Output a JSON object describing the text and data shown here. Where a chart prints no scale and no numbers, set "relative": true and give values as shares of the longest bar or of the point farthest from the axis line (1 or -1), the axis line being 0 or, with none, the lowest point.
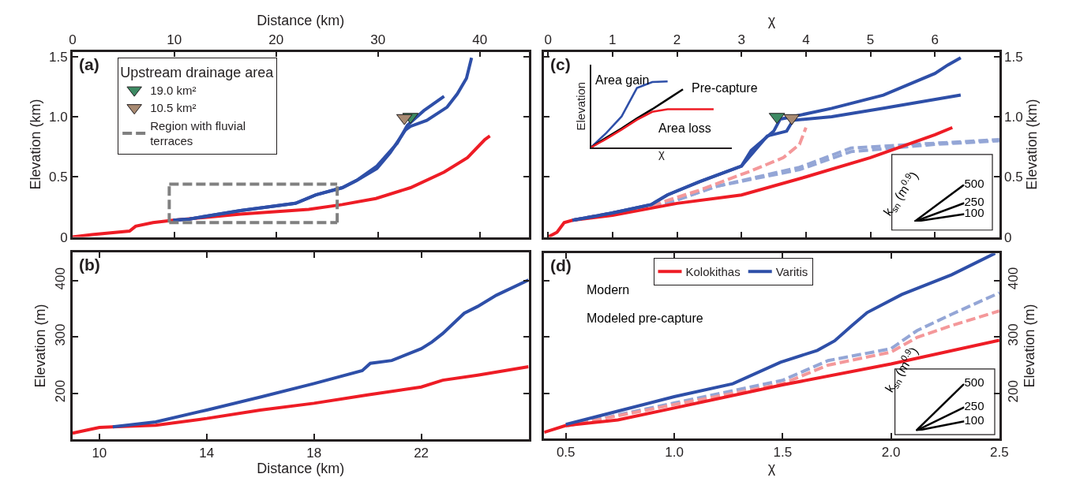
{
  "chart_data": [
    {
      "type": "line",
      "title": "(a)",
      "xlabel": "Distance (km)",
      "ylabel": "Elevation (km)",
      "xlim": [
        0,
        44.8
      ],
      "ylim": [
        0,
        1.54
      ],
      "xticks": [
        0,
        10,
        20,
        30,
        40
      ],
      "yticks": [
        0,
        0.5,
        {
          "value": 1,
          "label": "1.0"
        },
        1.5
      ],
      "legend": "top left",
      "legend_title": "Upstream drainage area",
      "series": [
        {
          "color": "#ee1c25",
          "x": [
            0,
            1.9,
            5.6,
            6.2,
            7.9,
            9.9,
            16.5,
            23.2,
            26.5,
            29.8,
            33.2,
            36.5,
            38.8,
            40.5,
            41
          ],
          "values": [
            0,
            0.02,
            0.05,
            0.09,
            0.12,
            0.14,
            0.19,
            0.23,
            0.27,
            0.32,
            0.41,
            0.54,
            0.66,
            0.81,
            0.84
          ]
        },
        {
          "color": "#2e4fa8",
          "x": [
            9.9,
            11.5,
            16.5,
            21.9,
            23.9,
            26.5,
            27.9,
            29.9,
            31.2,
            32.7,
            33.2,
            34.8,
            36.8,
            37.8,
            38.7,
            39.2
          ],
          "values": [
            0.14,
            0.15,
            0.22,
            0.28,
            0.35,
            0.41,
            0.47,
            0.57,
            0.7,
            0.89,
            0.92,
            0.97,
            1.08,
            1.19,
            1.32,
            1.49
          ]
        },
        {
          "color": "#2e4fa8",
          "x": [
            9.9,
            11.5,
            16.5,
            21.9,
            23.9,
            26.5,
            27.9,
            29.9,
            31.9,
            32.9,
            34.5,
            36.5
          ],
          "values": [
            0.14,
            0.15,
            0.22,
            0.28,
            0.35,
            0.41,
            0.47,
            0.59,
            0.78,
            0.93,
            1.05,
            1.17
          ]
        },
        {
          "type": "scatter",
          "marker": "triangle",
          "name": "19.0 km²",
          "color": "#3d8a63",
          "x": [
            33.2
          ],
          "values": [
            1.0
          ]
        },
        {
          "type": "scatter",
          "marker": "triangle",
          "name": "10.5 km²",
          "color": "#a88a72",
          "x": [
            32.6
          ],
          "values": [
            0.99
          ]
        },
        {
          "name": "Region with fluvial terraces",
          "color": "#808080",
          "line_style": "dashed",
          "x": [
            9.5,
            26
          ],
          "values": [
            0.12,
            0.12
          ]
        },
        {
          "color": "#808080",
          "line_style": "dashed",
          "x": [
            9.5,
            26
          ],
          "values": [
            0.44,
            0.44
          ]
        },
        {
          "color": "#808080",
          "line_style": "dashed",
          "x": [
            9.5,
            9.5
          ],
          "values": [
            0.12,
            0.44
          ]
        },
        {
          "color": "#808080",
          "line_style": "dashed",
          "x": [
            26,
            26
          ],
          "values": [
            0.12,
            0.44
          ]
        }
      ]
    },
    {
      "type": "line",
      "title": "(b)",
      "xlabel": "Distance (km)",
      "ylabel": "Elevation (m)",
      "xlim": [
        9,
        26
      ],
      "ylim": [
        118,
        450
      ],
      "xticks": [
        10,
        14,
        18,
        22
      ],
      "yticks": [
        200,
        300,
        400
      ],
      "series": [
        {
          "color": "#ee1c25",
          "x": [
            9,
            10,
            10.5,
            12.1,
            14,
            16,
            18,
            20,
            22,
            22.8,
            24.1,
            26
          ],
          "values": [
            129,
            139,
            140,
            143,
            155,
            170,
            182,
            197,
            211,
            223,
            232,
            247
          ]
        },
        {
          "color": "#2e4fa8",
          "x": [
            10.5,
            12.1,
            14,
            16,
            18,
            19.8,
            20.1,
            20.9,
            22,
            22.4,
            22.8,
            23.6,
            24.1,
            24.8,
            26
          ],
          "values": [
            140,
            149,
            170,
            193,
            217,
            240,
            253,
            258,
            279,
            291,
            306,
            342,
            354,
            374,
            401
          ]
        }
      ]
    },
    {
      "type": "line",
      "title": "(c)",
      "xlabel": "χ",
      "ylabel": "Elevation (km)",
      "xlim": [
        -0.06,
        7.0
      ],
      "ylim": [
        0,
        1.54
      ],
      "xticks": [
        0,
        1,
        2,
        3,
        4,
        5,
        6
      ],
      "yticks": [
        0,
        0.5,
        {
          "value": 1,
          "label": "1.0"
        },
        1.5
      ],
      "series": [
        {
          "color": "#94a6d6",
          "line_style": "dashed",
          "x": [
            0.38,
            1.85,
            2.6,
            3.9,
            4.7,
            6,
            7
          ],
          "values": [
            0.14,
            0.28,
            0.42,
            0.58,
            0.74,
            0.78,
            0.81
          ]
        },
        {
          "color": "#94a6d6",
          "line_style": "dashed",
          "x": [
            0.38,
            1.85,
            2.6,
            3.9,
            4.7,
            6,
            7
          ],
          "values": [
            0.14,
            0.28,
            0.42,
            0.56,
            0.71,
            0.77,
            0.8
          ]
        },
        {
          "color": "#f4989a",
          "line_style": "dashed",
          "x": [
            0.38,
            1.6,
            2.35,
            3.15,
            3.65,
            3.9,
            4.0
          ],
          "values": [
            0.14,
            0.26,
            0.39,
            0.55,
            0.66,
            0.77,
            0.91
          ]
        },
        {
          "color": "#ee1c25",
          "x": [
            0,
            0.14,
            0.25,
            0.38,
            1,
            2,
            3,
            4,
            5,
            6,
            6.27
          ],
          "values": [
            0,
            0.04,
            0.12,
            0.14,
            0.18,
            0.28,
            0.35,
            0.5,
            0.66,
            0.85,
            0.91
          ]
        },
        {
          "color": "#2e4fa8",
          "x": [
            0.38,
            1,
            1.6,
            1.85,
            2.35,
            3,
            3.15,
            3.5,
            3.6,
            3.7,
            4.4,
            5.2,
            6,
            6.2,
            6.4
          ],
          "values": [
            0.14,
            0.2,
            0.27,
            0.35,
            0.46,
            0.59,
            0.72,
            0.88,
            0.98,
            0.99,
            1.07,
            1.18,
            1.36,
            1.43,
            1.49
          ]
        },
        {
          "color": "#2e4fa8",
          "x": [
            0.38,
            1,
            1.6,
            1.85,
            2.35,
            3,
            3.4,
            3.7,
            3.8,
            4.4,
            5.2,
            6.4
          ],
          "values": [
            0.14,
            0.2,
            0.27,
            0.35,
            0.46,
            0.59,
            0.84,
            0.88,
            0.97,
            1.0,
            1.07,
            1.18
          ]
        },
        {
          "type": "scatter",
          "marker": "triangle",
          "color": "#3d8a63",
          "x": [
            3.55
          ],
          "values": [
            1.0
          ]
        },
        {
          "type": "scatter",
          "marker": "triangle",
          "color": "#a88a72",
          "x": [
            3.78
          ],
          "values": [
            0.99
          ]
        }
      ]
    },
    {
      "type": "line",
      "relative": true,
      "xlabel": "χ",
      "ylabel": "Elevation",
      "annotations": [
        "Area gain",
        "Pre-capture",
        "Area loss"
      ],
      "categories": [
        null,
        null,
        null,
        null,
        null,
        null,
        null,
        null,
        null
      ],
      "series": [
        {
          "color": "#2e4fa8",
          "values": [
            0,
            0.22,
            0.47,
            0.9,
            0.99,
            1.0,
            null,
            null,
            null
          ]
        },
        {
          "color": "#000000",
          "values": [
            0,
            0.15,
            0.29,
            0.44,
            0.58,
            0.73,
            0.88,
            null,
            null
          ]
        },
        {
          "color": "#ee1c25",
          "values": [
            0,
            0.13,
            0.27,
            0.42,
            0.54,
            0.58,
            0.58,
            0.58,
            0.58
          ]
        }
      ]
    },
    {
      "type": "other",
      "annotations": [
        "k$_{sn}$ (m$^{0.9}$)"
      ],
      "values": [
        500,
        250,
        100
      ],
      "data_labels": true,
      "color": "#000000"
    },
    {
      "type": "line",
      "title": "(d)",
      "xlabel": "χ",
      "ylabel": "Elevation (m)",
      "xlim": [
        0.4,
        2.5
      ],
      "ylim": [
        120,
        448
      ],
      "xticks": [
        0.5,
        {
          "value": 1,
          "label": "1.0"
        },
        1.5,
        {
          "value": 2,
          "label": "2.0"
        },
        2.5
      ],
      "yticks": [
        200,
        300,
        400
      ],
      "legend": "top left",
      "annotations": [
        "Modern",
        "Modeled pre-capture"
      ],
      "series": [
        {
          "color": "#94a6d6",
          "line_style": "dashed",
          "x": [
            0.5,
            1.0,
            1.5,
            1.71,
            2.0,
            2.12,
            2.28,
            2.5
          ],
          "values": [
            142,
            183,
            223,
            258,
            279,
            311,
            340,
            378
          ]
        },
        {
          "color": "#f4989a",
          "line_style": "dashed",
          "x": [
            0.5,
            1.0,
            1.5,
            1.71,
            2.0,
            2.12,
            2.28,
            2.5
          ],
          "values": [
            142,
            180,
            217,
            250,
            273,
            299,
            320,
            346
          ]
        },
        {
          "name": "Kolokithas",
          "color": "#ee1c25",
          "x": [
            0.4,
            0.5,
            0.74,
            1.0,
            1.5,
            2.0,
            2.5
          ],
          "values": [
            131,
            143,
            153,
            174,
            215,
            252,
            294
          ]
        },
        {
          "name": "Varitis",
          "color": "#2e4fa8",
          "x": [
            0.5,
            1.0,
            1.27,
            1.49,
            1.66,
            1.74,
            1.82,
            1.89,
            2.05,
            2.28,
            2.48
          ],
          "values": [
            145,
            194,
            217,
            255,
            276,
            293,
            320,
            343,
            375,
            410,
            448
          ]
        }
      ]
    },
    {
      "type": "other",
      "annotations": [
        "k$_{sn}$ (m$^{0.9}$)"
      ],
      "values": [
        500,
        250,
        100
      ],
      "data_labels": true,
      "color": "#000000"
    }
  ]
}
